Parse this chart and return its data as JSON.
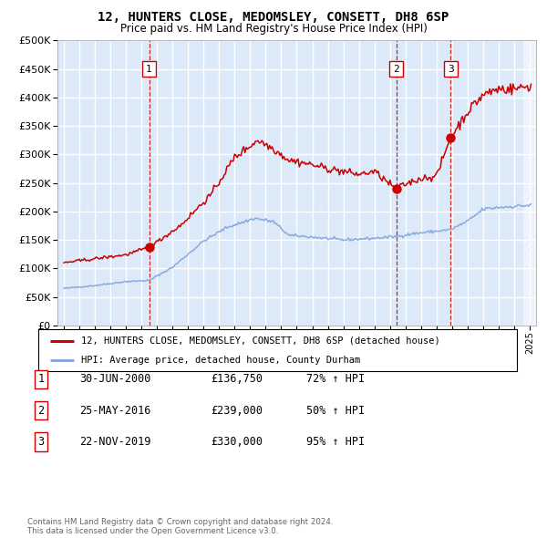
{
  "title": "12, HUNTERS CLOSE, MEDOMSLEY, CONSETT, DH8 6SP",
  "subtitle": "Price paid vs. HM Land Registry's House Price Index (HPI)",
  "legend_label_red": "12, HUNTERS CLOSE, MEDOMSLEY, CONSETT, DH8 6SP (detached house)",
  "legend_label_blue": "HPI: Average price, detached house, County Durham",
  "footer1": "Contains HM Land Registry data © Crown copyright and database right 2024.",
  "footer2": "This data is licensed under the Open Government Licence v3.0.",
  "sales": [
    {
      "num": 1,
      "date": "30-JUN-2000",
      "price": 136750,
      "pct": "72%",
      "dir": "↑"
    },
    {
      "num": 2,
      "date": "25-MAY-2016",
      "price": 239000,
      "pct": "50%",
      "dir": "↑"
    },
    {
      "num": 3,
      "date": "22-NOV-2019",
      "price": 330000,
      "pct": "95%",
      "dir": "↑"
    }
  ],
  "sale_dates_decimal": [
    2000.5,
    2016.4,
    2019.9
  ],
  "sale_prices": [
    136750,
    239000,
    330000
  ],
  "ylim": [
    0,
    500000
  ],
  "yticks": [
    0,
    50000,
    100000,
    150000,
    200000,
    250000,
    300000,
    350000,
    400000,
    450000,
    500000
  ],
  "bg_color": "#dce9f8",
  "grid_color": "#ffffff",
  "red_line_color": "#cc0000",
  "blue_line_color": "#88aadd",
  "dashed_line_color": "#cc0000",
  "xlim_left": 1994.6,
  "xlim_right": 2025.4,
  "hatch_start": 2024.58
}
